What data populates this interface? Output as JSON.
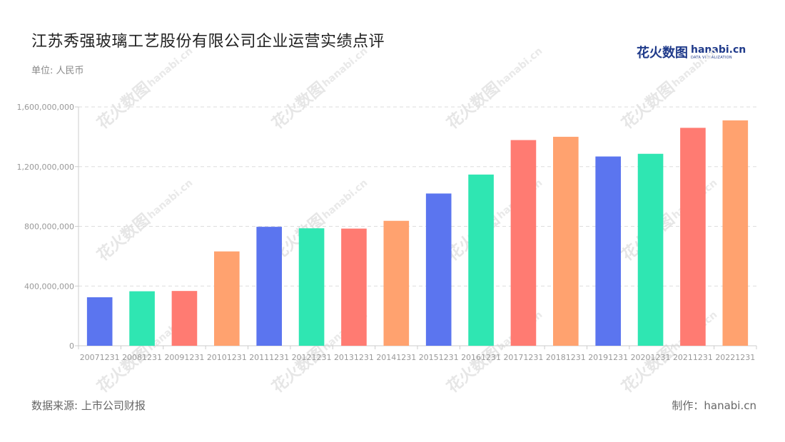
{
  "header": {
    "title": "江苏秀强玻璃工艺股份有限公司企业运营实绩点评",
    "unit": "单位: 人民币"
  },
  "logo": {
    "cn_part1": "花火",
    "cn_part2": "数图",
    "en": "hanabi.cn",
    "sub": "DATA VISUALIZATION"
  },
  "watermark": {
    "cn": "花火数图",
    "en": "hanabi.cn"
  },
  "footer": {
    "source": "数据来源: 上市公司财报",
    "credit": "制作：hanabi.cn"
  },
  "chart_data": {
    "type": "bar",
    "categories": [
      "20071231",
      "20081231",
      "20091231",
      "20101231",
      "20111231",
      "20121231",
      "20131231",
      "20141231",
      "20151231",
      "20161231",
      "20171231",
      "20181231",
      "20191231",
      "20201231",
      "20211231",
      "20221231"
    ],
    "values": [
      325000000,
      365000000,
      367000000,
      632000000,
      797000000,
      787000000,
      785000000,
      837000000,
      1020000000,
      1147000000,
      1378000000,
      1400000000,
      1268000000,
      1286000000,
      1460000000,
      1510000000
    ],
    "bar_colors": [
      "#5b75ef",
      "#2fe6b2",
      "#ff7b72",
      "#ffa26f",
      "#5b75ef",
      "#2fe6b2",
      "#ff7b72",
      "#ffa26f",
      "#5b75ef",
      "#2fe6b2",
      "#ff7b72",
      "#ffa26f",
      "#5b75ef",
      "#2fe6b2",
      "#ff7b72",
      "#ffa26f"
    ],
    "yticks": [
      0,
      400000000,
      800000000,
      1200000000,
      1600000000
    ],
    "ytick_labels": [
      "0",
      "400,000,000",
      "800,000,000",
      "1,200,000,000",
      "1,600,000,000"
    ],
    "ylim": [
      0,
      1600000000
    ],
    "grid": true,
    "axis_color": "#cccccc",
    "grid_color": "#dddddd",
    "tick_label_color": "#999999"
  }
}
